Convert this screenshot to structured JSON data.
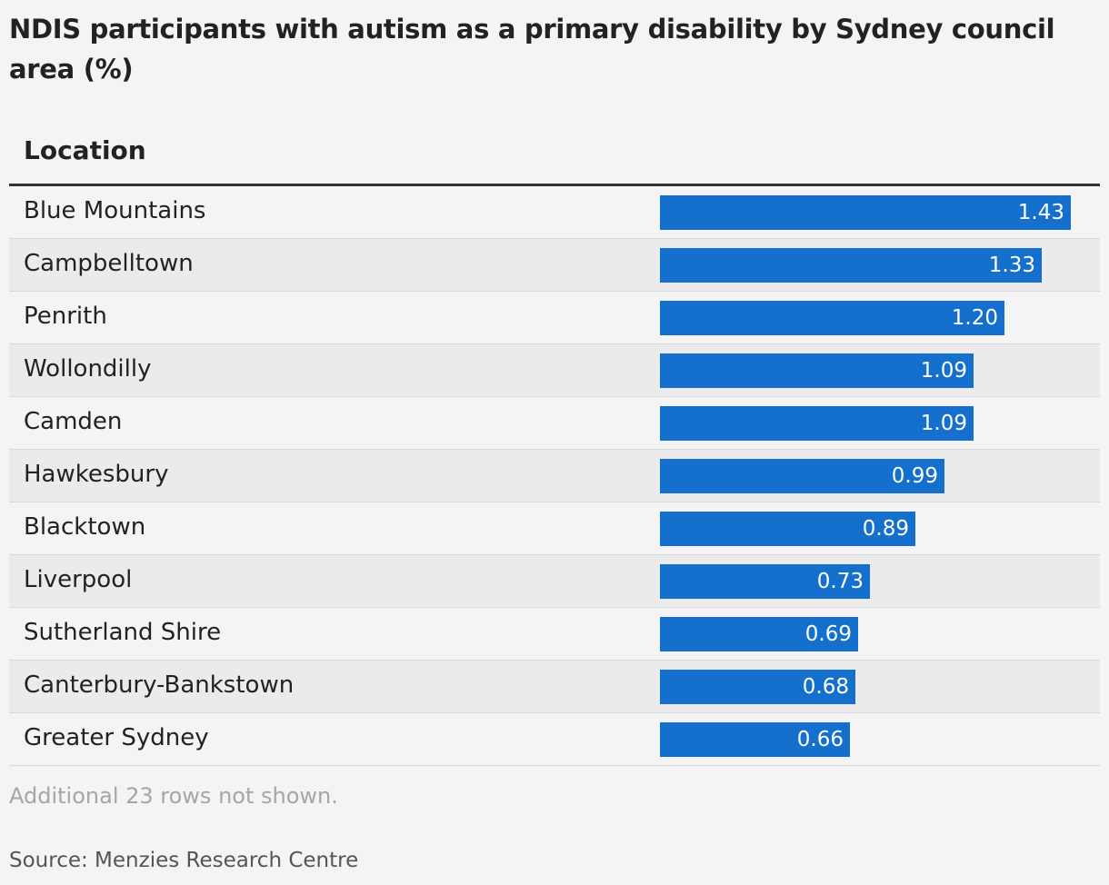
{
  "title": "NDIS participants with autism as a primary disability by Sydney council area (%)",
  "column_header": "Location",
  "footnote": "Additional 23 rows not shown.",
  "source": "Source: Menzies Research Centre",
  "colors": {
    "bar": "#1470cc",
    "background": "#f4f4f4",
    "alt_row": "#ebebeb",
    "text": "#222222"
  },
  "chart_data": {
    "type": "bar",
    "orientation": "horizontal",
    "title": "NDIS participants with autism as a primary disability by Sydney council area (%)",
    "column_header": "Location",
    "categories": [
      "Blue Mountains",
      "Campbelltown",
      "Penrith",
      "Wollondilly",
      "Camden",
      "Hawkesbury",
      "Blacktown",
      "Liverpool",
      "Sutherland Shire",
      "Canterbury-Bankstown",
      "Greater Sydney"
    ],
    "values": [
      1.43,
      1.33,
      1.2,
      1.09,
      1.09,
      0.99,
      0.89,
      0.73,
      0.69,
      0.68,
      0.66
    ],
    "value_labels": [
      "1.43",
      "1.33",
      "1.20",
      "1.09",
      "1.09",
      "0.99",
      "0.89",
      "0.73",
      "0.69",
      "0.68",
      "0.66"
    ],
    "xlim": [
      0,
      1.43
    ],
    "grid": false,
    "legend": "none"
  }
}
